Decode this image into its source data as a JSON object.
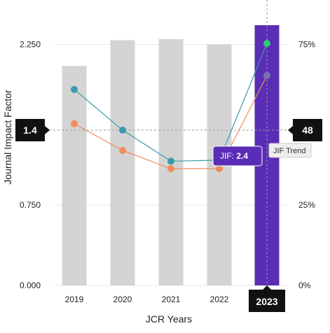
{
  "chart_data": {
    "type": "bar",
    "title": "",
    "xlabel": "JCR Years",
    "ylabel": "Journal Impact Factor",
    "categories": [
      "2019",
      "2020",
      "2021",
      "2022",
      "2023"
    ],
    "bar_values": [
      2.05,
      2.29,
      2.3,
      2.25,
      2.43
    ],
    "highlight_category": "2023",
    "ylim": [
      0,
      2.43
    ],
    "y_ticks": [
      "0.000",
      "0.750",
      "1.4",
      "2.250"
    ],
    "y2lim": [
      0,
      81
    ],
    "y2_ticks": [
      "0%",
      "25%",
      "48",
      "75%"
    ],
    "series": [
      {
        "values": [
          1.83,
          1.45,
          1.16,
          1.17,
          2.26
        ]
      },
      {
        "values": [
          1.51,
          1.26,
          1.09,
          1.09,
          1.96
        ]
      }
    ],
    "reference_line": {
      "left_label": "1.4",
      "right_label": "48",
      "value": 1.45
    },
    "tooltip": {
      "prefix": "JIF: ",
      "value": "2.4"
    },
    "trend_label": "JIF Trend",
    "grid": true
  },
  "colors": {
    "bar": "#d4d4d4",
    "highlight_bar": "#5a2db6",
    "series_1": "#3a9bab",
    "series_2": "#f28c5a",
    "series_1_last": "#2ecc71",
    "series_2_last": "#7a75b0",
    "badge": "#111111",
    "tooltip": "#5a2db6",
    "grid": "#e6e6e6",
    "reference": "#999999"
  }
}
